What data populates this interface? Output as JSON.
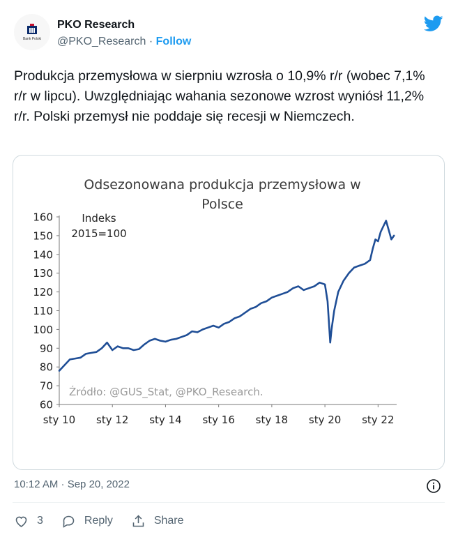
{
  "account": {
    "name": "PKO Research",
    "handle": "@PKO_Research",
    "separator": "·",
    "follow_label": "Follow",
    "logo_text": "Bank Polski"
  },
  "tweet": {
    "text": "Produkcja przemysłowa w sierpniu wzrosła o 10,9% r/r (wobec 7,1% r/r w lipcu). Uwzględniając wahania sezonowe wzrost wyniósł 11,2% r/r. Polski przemysł nie poddaje się recesji w Niemczech.",
    "timestamp": "10:12 AM · Sep 20, 2022"
  },
  "actions": {
    "like_count": "3",
    "reply_label": "Reply",
    "share_label": "Share"
  },
  "colors": {
    "accent": "#1d9bf0",
    "line": "#1f4e96",
    "text_secondary": "#536471"
  },
  "icons": [
    "bank-logo-icon",
    "twitter-bird-icon",
    "info-icon",
    "heart-icon",
    "reply-icon",
    "share-icon"
  ],
  "chart_data": {
    "type": "line",
    "title": "Odsezonowana produkcja przemysłowa w Polsce",
    "title_lines": [
      "Odsezonowana produkcja przemysłowa w",
      "Polsce"
    ],
    "annotation": [
      "Indeks",
      "2015=100"
    ],
    "source": "Źródło: @GUS_Stat, @PKO_Research.",
    "ylim": [
      60,
      160
    ],
    "yticks": [
      60,
      70,
      80,
      90,
      100,
      110,
      120,
      130,
      140,
      150,
      160
    ],
    "xlim": [
      2010.0,
      2022.7
    ],
    "xticks": [
      {
        "label": "sty 10",
        "value": 2010
      },
      {
        "label": "sty 12",
        "value": 2012
      },
      {
        "label": "sty 14",
        "value": 2014
      },
      {
        "label": "sty 16",
        "value": 2016
      },
      {
        "label": "sty 18",
        "value": 2018
      },
      {
        "label": "sty 20",
        "value": 2020
      },
      {
        "label": "sty 22",
        "value": 2022
      }
    ],
    "grid": false,
    "legend": "none",
    "x": [
      2010.0,
      2010.2,
      2010.4,
      2010.6,
      2010.8,
      2011.0,
      2011.2,
      2011.4,
      2011.6,
      2011.8,
      2012.0,
      2012.2,
      2012.4,
      2012.6,
      2012.8,
      2013.0,
      2013.2,
      2013.4,
      2013.6,
      2013.8,
      2014.0,
      2014.2,
      2014.4,
      2014.6,
      2014.8,
      2015.0,
      2015.2,
      2015.4,
      2015.6,
      2015.8,
      2016.0,
      2016.2,
      2016.4,
      2016.6,
      2016.8,
      2017.0,
      2017.2,
      2017.4,
      2017.6,
      2017.8,
      2018.0,
      2018.2,
      2018.4,
      2018.6,
      2018.8,
      2019.0,
      2019.2,
      2019.4,
      2019.6,
      2019.8,
      2020.0,
      2020.1,
      2020.2,
      2020.25,
      2020.35,
      2020.5,
      2020.7,
      2020.9,
      2021.1,
      2021.3,
      2021.5,
      2021.7,
      2021.8,
      2021.9,
      2022.0,
      2022.1,
      2022.2,
      2022.3,
      2022.4,
      2022.5,
      2022.6
    ],
    "y": [
      78,
      81,
      84,
      84.5,
      85,
      87,
      87.5,
      88,
      90,
      93,
      89,
      91,
      90,
      90,
      89,
      89.5,
      92,
      94,
      95,
      94,
      93.5,
      94.5,
      95,
      96,
      97,
      99,
      98.5,
      100,
      101,
      102,
      101,
      103,
      104,
      106,
      107,
      109,
      111,
      112,
      114,
      115,
      117,
      118,
      119,
      120,
      122,
      123,
      121,
      122,
      123,
      125,
      124,
      115,
      93,
      100,
      110,
      120,
      126,
      130,
      133,
      134,
      135,
      137,
      143,
      148,
      147,
      152,
      155,
      158,
      153,
      148,
      150
    ]
  }
}
